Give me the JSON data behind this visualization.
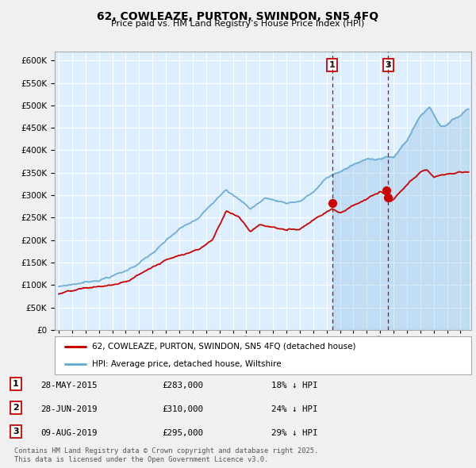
{
  "title": "62, COWLEAZE, PURTON, SWINDON, SN5 4FQ",
  "subtitle": "Price paid vs. HM Land Registry’s House Price Index (HPI)",
  "legend_line1": "62, COWLEAZE, PURTON, SWINDON, SN5 4FQ (detached house)",
  "legend_line2": "HPI: Average price, detached house, Wiltshire",
  "footer_line1": "Contains HM Land Registry data © Crown copyright and database right 2025.",
  "footer_line2": "This data is licensed under the Open Government Licence v3.0.",
  "transactions": [
    {
      "num": "1",
      "date": "28-MAY-2015",
      "price": 283000,
      "hpi_diff": "18% ↓ HPI"
    },
    {
      "num": "2",
      "date": "28-JUN-2019",
      "price": 310000,
      "hpi_diff": "24% ↓ HPI"
    },
    {
      "num": "3",
      "date": "09-AUG-2019",
      "price": 295000,
      "hpi_diff": "29% ↓ HPI"
    }
  ],
  "transaction_dates_num": [
    2015.41,
    2019.49,
    2019.6
  ],
  "transaction_prices": [
    283000,
    310000,
    295000
  ],
  "vline_dates_num": [
    2015.41,
    2019.6
  ],
  "vline_labels": [
    "1",
    "3"
  ],
  "hpi_color": "#6baed6",
  "price_color": "#cc0000",
  "dot_color": "#cc0000",
  "vline_color": "#cc0000",
  "background_color": "#ddeeff",
  "grid_color": "#ffffff",
  "fig_color": "#f0f0f0",
  "ylim": [
    0,
    620000
  ],
  "yticks": [
    0,
    50000,
    100000,
    150000,
    200000,
    250000,
    300000,
    350000,
    400000,
    450000,
    500000,
    550000,
    600000
  ],
  "xlim_start": 1994.7,
  "xlim_end": 2025.8,
  "xtick_years": [
    1995,
    1996,
    1997,
    1998,
    1999,
    2000,
    2001,
    2002,
    2003,
    2004,
    2005,
    2006,
    2007,
    2008,
    2009,
    2010,
    2011,
    2012,
    2013,
    2014,
    2015,
    2016,
    2017,
    2018,
    2019,
    2020,
    2021,
    2022,
    2023,
    2024,
    2025
  ]
}
